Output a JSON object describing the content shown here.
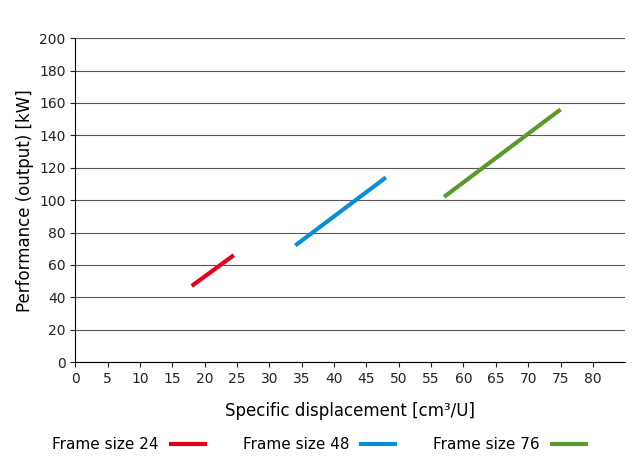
{
  "chart_data": {
    "type": "line",
    "x_label": "Specific displacement [cm³/U]",
    "y_label": "Performance (output) [kW]",
    "series": [
      {
        "name": "Frame size 24",
        "color": "#e2001a",
        "x": [
          18,
          24.5
        ],
        "values": [
          47,
          66
        ],
        "line_style": "solid"
      },
      {
        "name": "Frame size 48",
        "color": "#0a8fd6",
        "x": [
          34,
          48
        ],
        "values": [
          72,
          114
        ],
        "line_style": "solid"
      },
      {
        "name": "Frame size 76",
        "color": "#5a9a2a",
        "x": [
          57,
          75
        ],
        "values": [
          102,
          156
        ],
        "line_style": "solid"
      }
    ],
    "xlim": [
      0,
      85
    ],
    "xticks": [
      0,
      5,
      10,
      15,
      20,
      25,
      30,
      35,
      40,
      45,
      50,
      55,
      60,
      65,
      70,
      75,
      80
    ],
    "ylim": [
      0,
      200
    ],
    "yticks": [
      0,
      20,
      40,
      60,
      80,
      100,
      120,
      140,
      160,
      180,
      200
    ],
    "grid": "y",
    "legend": "bottom"
  }
}
